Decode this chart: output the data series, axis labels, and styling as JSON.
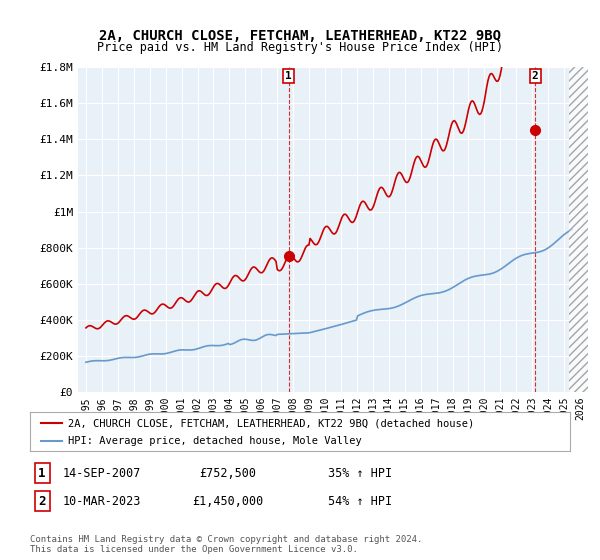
{
  "title": "2A, CHURCH CLOSE, FETCHAM, LEATHERHEAD, KT22 9BQ",
  "subtitle": "Price paid vs. HM Land Registry's House Price Index (HPI)",
  "legend_line1": "2A, CHURCH CLOSE, FETCHAM, LEATHERHEAD, KT22 9BQ (detached house)",
  "legend_line2": "HPI: Average price, detached house, Mole Valley",
  "sale1_label": "1",
  "sale1_date": "14-SEP-2007",
  "sale1_price": "£752,500",
  "sale1_hpi": "35% ↑ HPI",
  "sale2_label": "2",
  "sale2_date": "10-MAR-2023",
  "sale2_price": "£1,450,000",
  "sale2_hpi": "54% ↑ HPI",
  "footnote": "Contains HM Land Registry data © Crown copyright and database right 2024.\nThis data is licensed under the Open Government Licence v3.0.",
  "red_color": "#cc0000",
  "blue_color": "#6699cc",
  "dashed_red": "#cc0000",
  "marker_box_color": "#cc0000",
  "ylim": [
    0,
    1800000
  ],
  "yticks": [
    0,
    200000,
    400000,
    600000,
    800000,
    1000000,
    1200000,
    1400000,
    1600000,
    1800000
  ],
  "ytick_labels": [
    "£0",
    "£200K",
    "£400K",
    "£600K",
    "£800K",
    "£1M",
    "£1.2M",
    "£1.4M",
    "£1.6M",
    "£1.8M"
  ],
  "xtick_years": [
    1995,
    1996,
    1997,
    1998,
    1999,
    2000,
    2001,
    2002,
    2003,
    2004,
    2005,
    2006,
    2007,
    2008,
    2009,
    2010,
    2011,
    2012,
    2013,
    2014,
    2015,
    2016,
    2017,
    2018,
    2019,
    2020,
    2021,
    2022,
    2023,
    2024,
    2025,
    2026
  ],
  "sale1_x": 2007.71,
  "sale1_y": 752500,
  "sale2_x": 2023.19,
  "sale2_y": 1450000,
  "vline1_x": 2007.71,
  "vline2_x": 2023.19,
  "hpi_start_year": 1995.0,
  "hpi_end_year": 2025.5,
  "red_start_year": 1995.0,
  "red_end_year": 2025.5,
  "background_color": "#ffffff",
  "plot_bg_color": "#e8f0f8",
  "grid_color": "#ffffff"
}
